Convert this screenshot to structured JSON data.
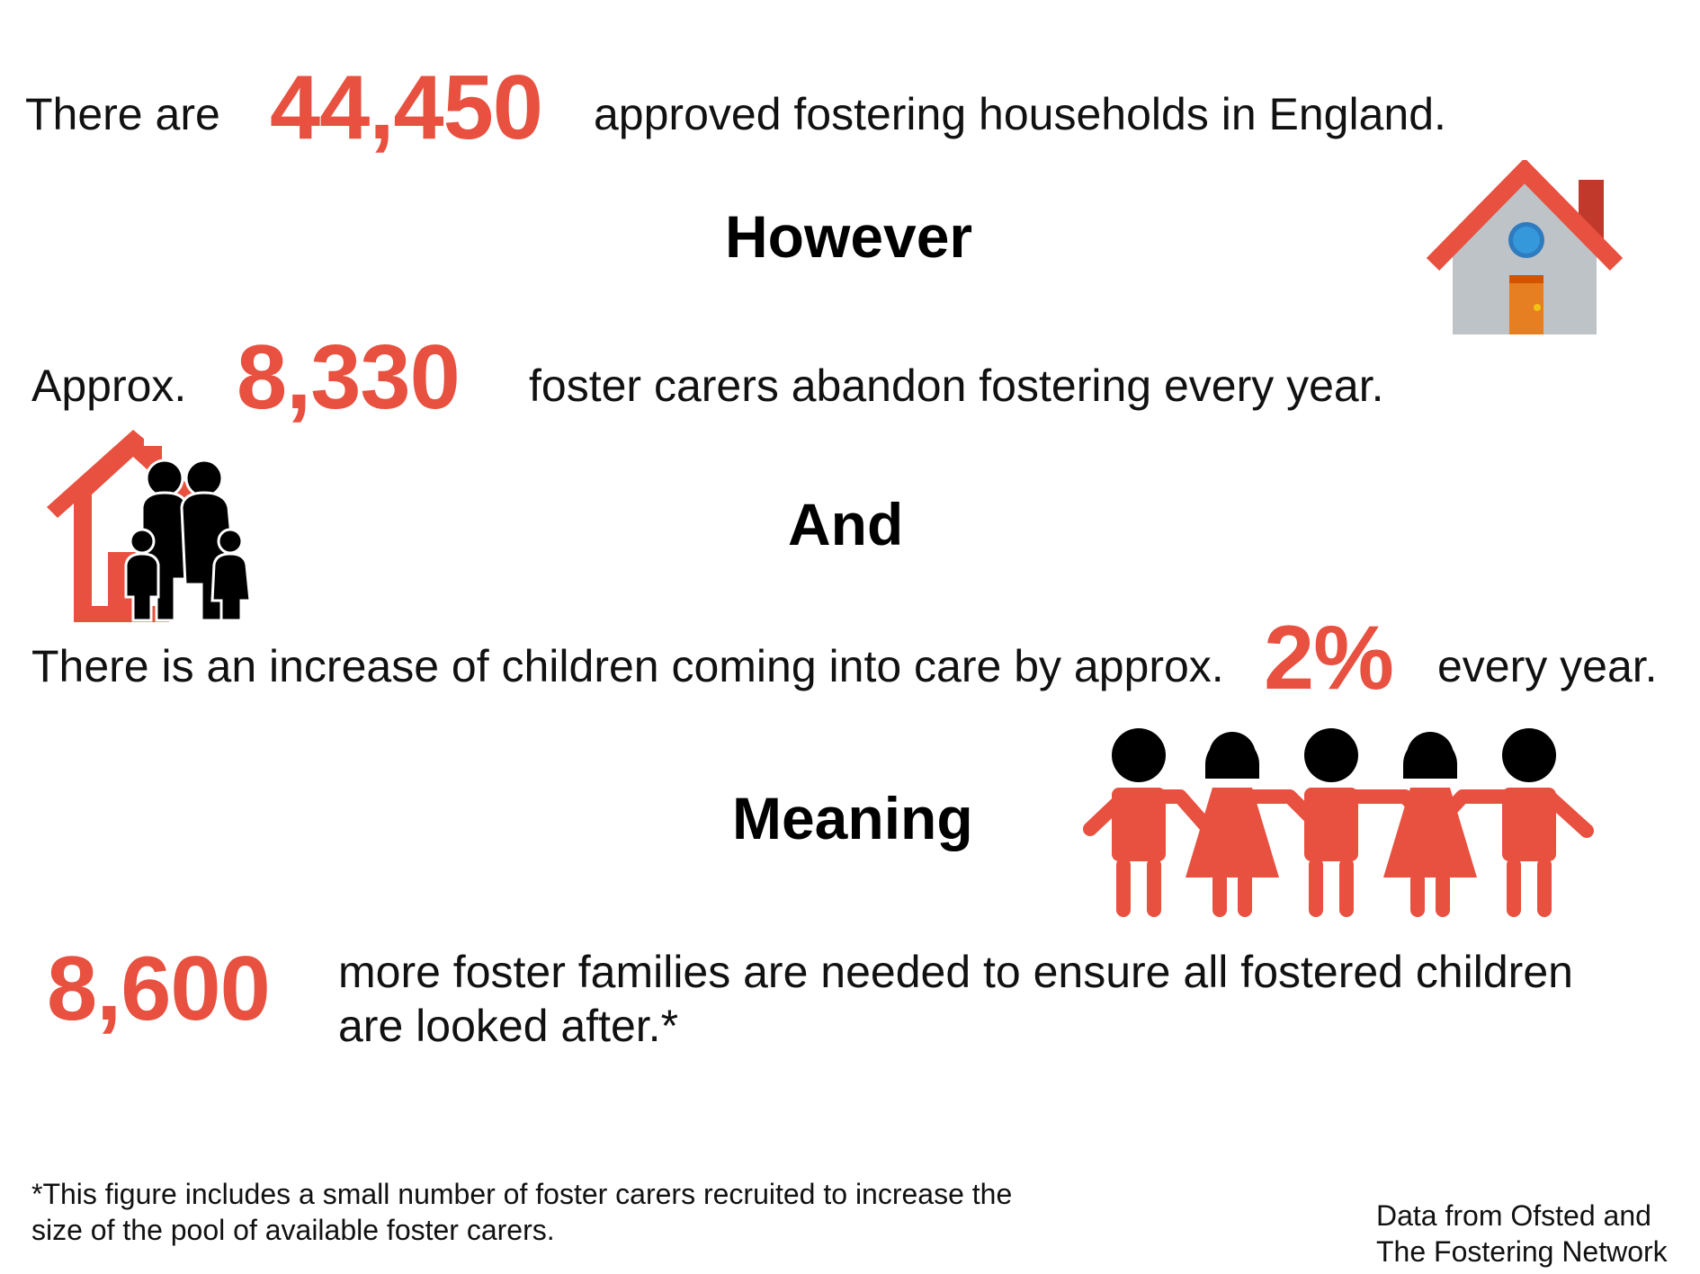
{
  "colors": {
    "accent": "#e8503f",
    "text": "#111111"
  },
  "line1": {
    "prefix": "There are",
    "number": "44,450",
    "suffix": "approved fostering households in England."
  },
  "heading1": "However",
  "line2": {
    "prefix": "Approx.",
    "number": "8,330",
    "suffix": "foster carers abandon fostering every year."
  },
  "heading2": "And",
  "line3": {
    "prefix": "There is an increase of children coming into care by approx.",
    "number": "2%",
    "suffix": "every year."
  },
  "heading3": "Meaning",
  "line4": {
    "number": "8,600",
    "suffix_line1": "more foster families are needed to ensure all fostered children",
    "suffix_line2": "are looked after.*"
  },
  "footnote": {
    "line1": "*This figure includes a small number of foster carers recruited to increase the",
    "line2": "size of the pool of available foster carers."
  },
  "source": {
    "line1": "Data from Ofsted and",
    "line2": "The Fostering Network"
  },
  "icons": [
    "house-icon",
    "family-home-icon",
    "children-holding-hands-icon"
  ]
}
